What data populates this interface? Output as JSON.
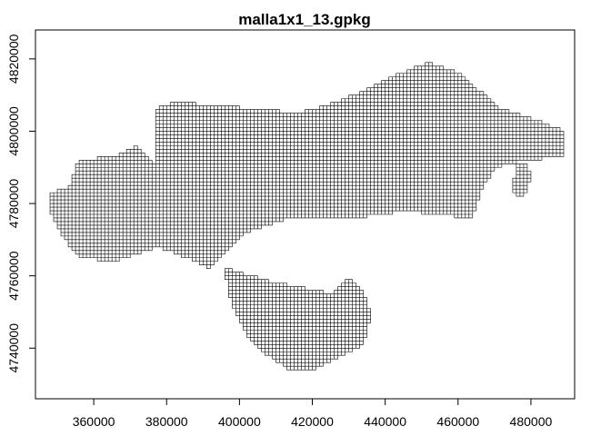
{
  "chart_data": {
    "type": "map",
    "title": "malla1x1_13.gpkg",
    "xlabel": "",
    "ylabel": "",
    "xlim": [
      344000,
      492000
    ],
    "ylim": [
      4726000,
      4828000
    ],
    "x_ticks": [
      360000,
      380000,
      400000,
      420000,
      440000,
      460000,
      480000
    ],
    "y_ticks": [
      4740000,
      4760000,
      4780000,
      4800000,
      4820000
    ],
    "x_tick_labels": [
      "360000",
      "380000",
      "400000",
      "420000",
      "440000",
      "460000",
      "480000"
    ],
    "y_tick_labels": [
      "4740000",
      "4760000",
      "4780000",
      "4800000",
      "4820000"
    ],
    "grid": false,
    "cell_size_m": 1000,
    "grid_region": {
      "x_range": [
        348000,
        489000
      ],
      "y_range": [
        4734000,
        4819000
      ],
      "outline": [
        [
          348000,
          4783000
        ],
        [
          353000,
          4784000
        ],
        [
          356000,
          4792000
        ],
        [
          366000,
          4793000
        ],
        [
          372000,
          4796000
        ],
        [
          377000,
          4791000
        ],
        [
          377000,
          4806000
        ],
        [
          382000,
          4808000
        ],
        [
          394000,
          4807000
        ],
        [
          406000,
          4806000
        ],
        [
          416000,
          4805000
        ],
        [
          424000,
          4807000
        ],
        [
          434000,
          4811000
        ],
        [
          442000,
          4815000
        ],
        [
          452000,
          4819000
        ],
        [
          460000,
          4816000
        ],
        [
          472000,
          4806000
        ],
        [
          482000,
          4803000
        ],
        [
          489000,
          4800000
        ],
        [
          489000,
          4793000
        ],
        [
          478000,
          4792000
        ],
        [
          470000,
          4790000
        ],
        [
          466000,
          4783000
        ],
        [
          464000,
          4776000
        ],
        [
          446000,
          4778000
        ],
        [
          432000,
          4776000
        ],
        [
          414000,
          4776000
        ],
        [
          402000,
          4772000
        ],
        [
          392000,
          4762000
        ],
        [
          388000,
          4764000
        ],
        [
          378000,
          4768000
        ],
        [
          366000,
          4764000
        ],
        [
          356000,
          4765000
        ],
        [
          351000,
          4772000
        ],
        [
          348000,
          4778000
        ]
      ],
      "southern_lobe": [
        [
          396000,
          4762000
        ],
        [
          410000,
          4758000
        ],
        [
          426000,
          4755000
        ],
        [
          430000,
          4760000
        ],
        [
          434000,
          4756000
        ],
        [
          436000,
          4749000
        ],
        [
          434000,
          4741000
        ],
        [
          428000,
          4738000
        ],
        [
          420000,
          4734000
        ],
        [
          414000,
          4734000
        ],
        [
          408000,
          4738000
        ],
        [
          402000,
          4744000
        ],
        [
          398000,
          4752000
        ]
      ],
      "east_islet": [
        [
          476000,
          4791000
        ],
        [
          479000,
          4791000
        ],
        [
          480000,
          4787000
        ],
        [
          478000,
          4782000
        ],
        [
          475000,
          4783000
        ]
      ]
    }
  }
}
